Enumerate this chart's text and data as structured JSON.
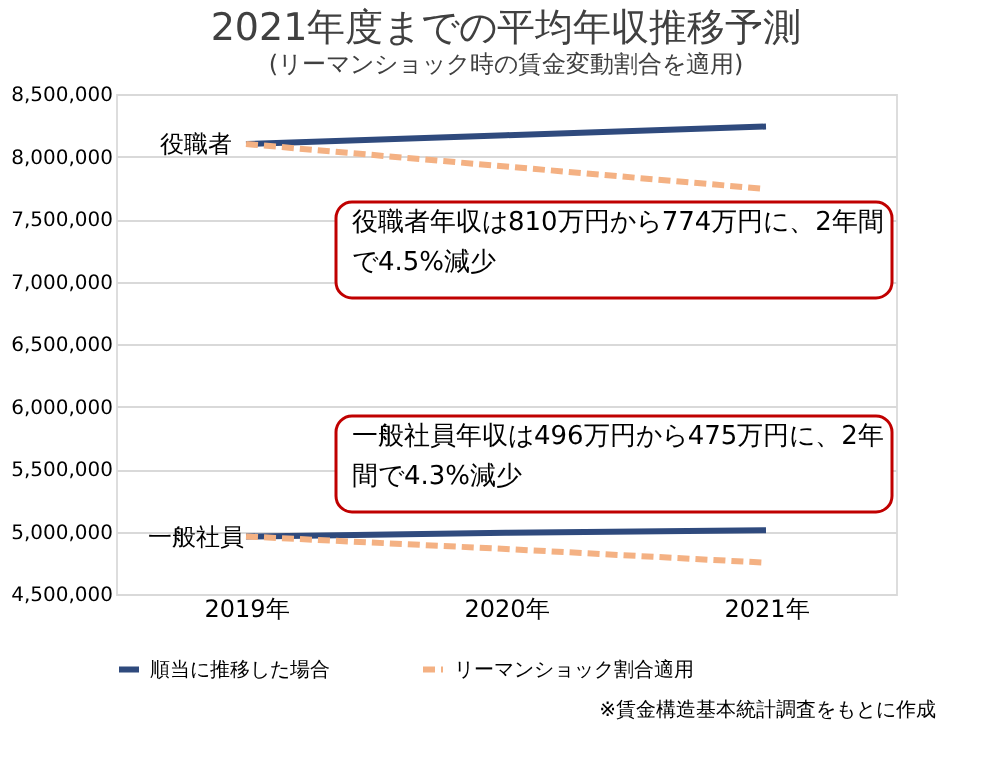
{
  "chart_data": {
    "type": "line",
    "title": "2021年度までの平均年収推移予測",
    "subtitle": "(リーマンショック時の賃金変動割合を適用)",
    "categories": [
      "2019年",
      "2020年",
      "2021年"
    ],
    "series": [
      {
        "name": "順当に推移した場合",
        "color": "#2f4a7d",
        "values": [
          8100000,
          8170000,
          8240000
        ],
        "line_style": "solid"
      },
      {
        "name": "リーマンショック割合適用",
        "color": "#f4b183",
        "values": [
          8100000,
          7920000,
          7740000
        ],
        "line_style": "dashed"
      },
      {
        "color": "#2f4a7d",
        "values": [
          4960000,
          4990000,
          5010000
        ],
        "line_style": "solid"
      },
      {
        "color": "#f4b183",
        "values": [
          4960000,
          4860000,
          4750000
        ],
        "line_style": "dashed"
      }
    ],
    "ylim": [
      4500000,
      8500000
    ],
    "yticks": [
      {
        "value": 4500000,
        "label": "4,500,000"
      },
      {
        "value": 5000000,
        "label": "5,000,000"
      },
      {
        "value": 5500000,
        "label": "5,500,000"
      },
      {
        "value": 6000000,
        "label": "6,000,000"
      },
      {
        "value": 6500000,
        "label": "6,500,000"
      },
      {
        "value": 7000000,
        "label": "7,000,000"
      },
      {
        "value": 7500000,
        "label": "7,500,000"
      },
      {
        "value": 8000000,
        "label": "8,000,000"
      },
      {
        "value": 8500000,
        "label": "8,500,000"
      }
    ],
    "grid": "y",
    "legend": "bottom",
    "marker": "none",
    "annotations": [
      {
        "text": "役職者",
        "x": "2019年",
        "y": 8100000
      },
      {
        "text": "一般社員",
        "x": "2019年",
        "y": 4960000
      },
      "役職者年収は810万円から774万円に、2年間で4.5%減少",
      "一般社員年収は496万円から475万円に、2年間で4.3%減少",
      "※賃金構造基本統計調査をもとに作成"
    ]
  }
}
